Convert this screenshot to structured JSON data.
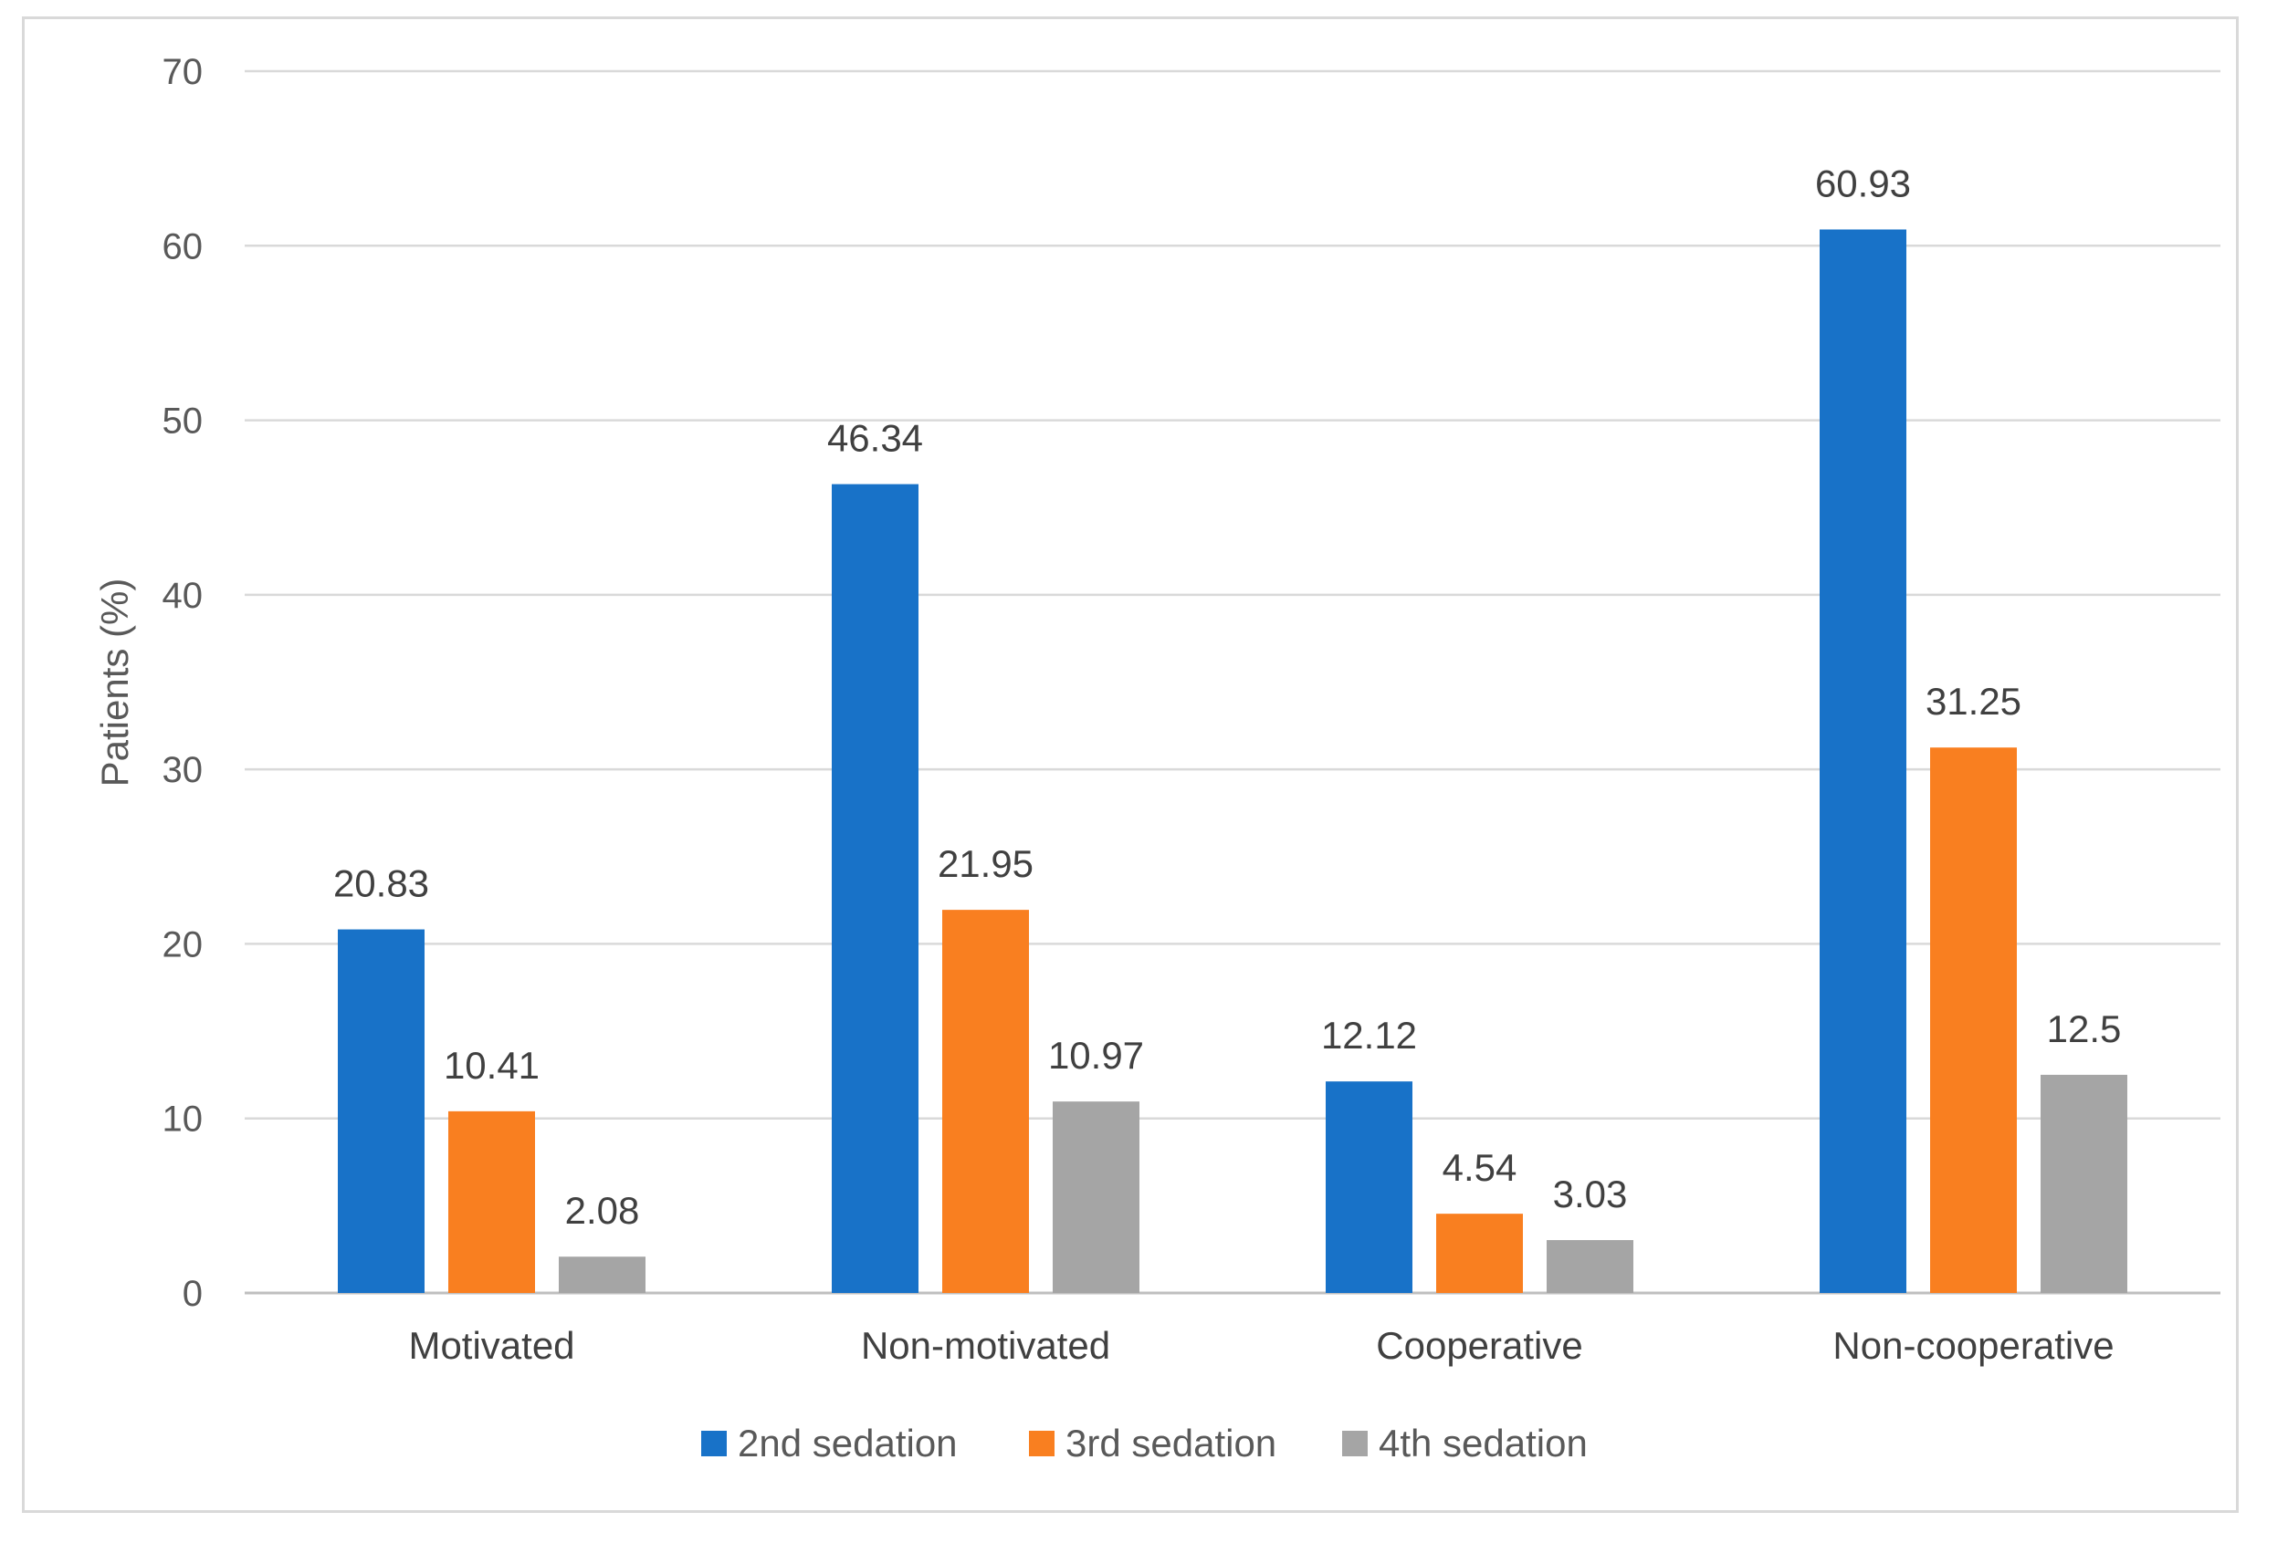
{
  "chart_data": {
    "type": "bar",
    "title": "",
    "xlabel": "",
    "ylabel": "Patients (%)",
    "ylim": [
      0,
      70
    ],
    "yticks": [
      0,
      10,
      20,
      30,
      40,
      50,
      60,
      70
    ],
    "grid": true,
    "legend_position": "bottom",
    "categories": [
      "Motivated",
      "Non-motivated",
      "Cooperative",
      "Non-cooperative"
    ],
    "series": [
      {
        "name": "2nd sedation",
        "color": "#1872c8",
        "values": [
          20.83,
          46.34,
          12.12,
          60.93
        ],
        "labels": [
          "20.83",
          "46.34",
          "12.12",
          "60.93"
        ]
      },
      {
        "name": "3rd sedation",
        "color": "#f97f20",
        "values": [
          10.41,
          21.95,
          4.54,
          31.25
        ],
        "labels": [
          "10.41",
          "21.95",
          "4.54",
          "31.25"
        ]
      },
      {
        "name": "4th sedation",
        "color": "#a5a5a5",
        "values": [
          2.08,
          10.97,
          3.03,
          12.5
        ],
        "labels": [
          "2.08",
          "10.97",
          "3.03",
          "12.5"
        ]
      }
    ],
    "colors": {
      "gridline": "#d9d9d9",
      "axis": "#bfbfbf"
    }
  }
}
